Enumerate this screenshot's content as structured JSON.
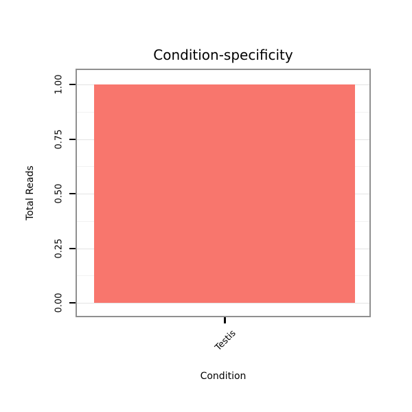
{
  "chart_data": {
    "type": "bar",
    "title": "Condition-specificity",
    "xlabel": "Condition",
    "ylabel": "Total Reads",
    "categories": [
      "Testis"
    ],
    "values": [
      1.0
    ],
    "ylim": [
      0,
      1.0
    ],
    "yticks": [
      0,
      0.25,
      0.5,
      0.75,
      1.0
    ],
    "ytick_labels": [
      "0.00",
      "0.25",
      "0.50",
      "0.75",
      "1.00"
    ],
    "bar_color": "#F8766D",
    "panel_border_color": "#8f8f8f",
    "grid": "on",
    "legend": "none"
  }
}
